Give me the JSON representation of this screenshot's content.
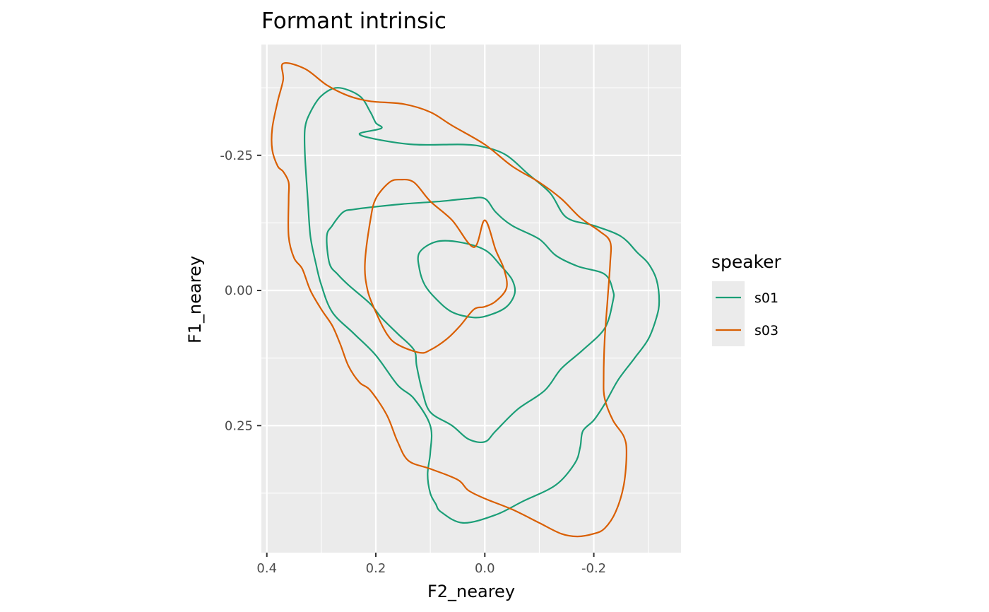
{
  "chart_data": {
    "type": "contour",
    "title": "Formant intrinsic",
    "xlabel": "F2_nearey",
    "ylabel": "F1_nearey",
    "x_reversed": true,
    "y_reversed": true,
    "xlim": [
      0.41,
      -0.36
    ],
    "ylim": [
      -0.455,
      0.485
    ],
    "x_ticks": [
      0.4,
      0.2,
      0.0,
      -0.2
    ],
    "x_tick_labels": [
      "0.4",
      "0.2",
      "0.0",
      "-0.2"
    ],
    "y_ticks": [
      -0.25,
      0.0,
      0.25
    ],
    "y_tick_labels": [
      "-0.25",
      "0.00",
      "0.25"
    ],
    "grid": true,
    "panel_background": "#ebebeb",
    "legend": {
      "title": "speaker",
      "position": "right",
      "entries": [
        {
          "label": "s01",
          "color": "#1b9e77"
        },
        {
          "label": "s03",
          "color": "#d95f02"
        }
      ]
    },
    "series": [
      {
        "name": "s01",
        "color": "#1b9e77",
        "contours": [
          {
            "level": "inner",
            "points": [
              [
                0.12,
                -0.07
              ],
              [
                0.09,
                -0.09
              ],
              [
                0.05,
                -0.09
              ],
              [
                0.0,
                -0.075
              ],
              [
                -0.03,
                -0.045
              ],
              [
                -0.05,
                -0.02
              ],
              [
                -0.055,
                0.005
              ],
              [
                -0.04,
                0.03
              ],
              [
                -0.01,
                0.045
              ],
              [
                0.02,
                0.05
              ],
              [
                0.06,
                0.04
              ],
              [
                0.09,
                0.015
              ],
              [
                0.11,
                -0.01
              ],
              [
                0.12,
                -0.04
              ],
              [
                0.12,
                -0.07
              ]
            ]
          },
          {
            "level": "middle",
            "points": [
              [
                0.24,
                -0.15
              ],
              [
                0.2,
                -0.155
              ],
              [
                0.15,
                -0.16
              ],
              [
                0.08,
                -0.165
              ],
              [
                0.03,
                -0.17
              ],
              [
                0.0,
                -0.17
              ],
              [
                -0.02,
                -0.145
              ],
              [
                -0.05,
                -0.12
              ],
              [
                -0.1,
                -0.095
              ],
              [
                -0.13,
                -0.065
              ],
              [
                -0.17,
                -0.045
              ],
              [
                -0.22,
                -0.03
              ],
              [
                -0.235,
                0.0
              ],
              [
                -0.235,
                0.02
              ],
              [
                -0.22,
                0.07
              ],
              [
                -0.18,
                0.11
              ],
              [
                -0.14,
                0.145
              ],
              [
                -0.11,
                0.185
              ],
              [
                -0.06,
                0.22
              ],
              [
                -0.02,
                0.26
              ],
              [
                0.0,
                0.28
              ],
              [
                0.03,
                0.275
              ],
              [
                0.06,
                0.25
              ],
              [
                0.1,
                0.225
              ],
              [
                0.115,
                0.185
              ],
              [
                0.125,
                0.14
              ],
              [
                0.13,
                0.11
              ],
              [
                0.16,
                0.08
              ],
              [
                0.19,
                0.05
              ],
              [
                0.21,
                0.025
              ],
              [
                0.25,
                -0.01
              ],
              [
                0.27,
                -0.03
              ],
              [
                0.285,
                -0.05
              ],
              [
                0.29,
                -0.1
              ],
              [
                0.28,
                -0.12
              ],
              [
                0.26,
                -0.145
              ],
              [
                0.24,
                -0.15
              ]
            ]
          },
          {
            "level": "outer",
            "points": [
              [
                0.23,
                -0.29
              ],
              [
                0.2,
                -0.28
              ],
              [
                0.13,
                -0.27
              ],
              [
                0.04,
                -0.27
              ],
              [
                0.0,
                -0.265
              ],
              [
                -0.04,
                -0.25
              ],
              [
                -0.08,
                -0.215
              ],
              [
                -0.12,
                -0.18
              ],
              [
                -0.15,
                -0.135
              ],
              [
                -0.2,
                -0.12
              ],
              [
                -0.25,
                -0.1
              ],
              [
                -0.28,
                -0.07
              ],
              [
                -0.3,
                -0.05
              ],
              [
                -0.315,
                -0.02
              ],
              [
                -0.32,
                0.02
              ],
              [
                -0.315,
                0.05
              ],
              [
                -0.3,
                0.09
              ],
              [
                -0.275,
                0.125
              ],
              [
                -0.245,
                0.165
              ],
              [
                -0.22,
                0.21
              ],
              [
                -0.2,
                0.24
              ],
              [
                -0.18,
                0.26
              ],
              [
                -0.175,
                0.29
              ],
              [
                -0.165,
                0.32
              ],
              [
                -0.13,
                0.36
              ],
              [
                -0.07,
                0.39
              ],
              [
                -0.02,
                0.415
              ],
              [
                0.04,
                0.43
              ],
              [
                0.08,
                0.41
              ],
              [
                0.09,
                0.395
              ],
              [
                0.1,
                0.375
              ],
              [
                0.105,
                0.34
              ],
              [
                0.1,
                0.3
              ],
              [
                0.1,
                0.25
              ],
              [
                0.13,
                0.2
              ],
              [
                0.16,
                0.175
              ],
              [
                0.2,
                0.12
              ],
              [
                0.24,
                0.08
              ],
              [
                0.28,
                0.04
              ],
              [
                0.3,
                -0.01
              ],
              [
                0.31,
                -0.05
              ],
              [
                0.32,
                -0.1
              ],
              [
                0.325,
                -0.17
              ],
              [
                0.33,
                -0.25
              ],
              [
                0.33,
                -0.3
              ],
              [
                0.32,
                -0.33
              ],
              [
                0.3,
                -0.36
              ],
              [
                0.27,
                -0.375
              ],
              [
                0.23,
                -0.36
              ],
              [
                0.21,
                -0.33
              ],
              [
                0.2,
                -0.31
              ],
              [
                0.19,
                -0.3
              ],
              [
                0.23,
                -0.29
              ]
            ]
          }
        ]
      },
      {
        "name": "s03",
        "color": "#d95f02",
        "contours": [
          {
            "level": "inner",
            "points": [
              [
                0.0,
                -0.13
              ],
              [
                0.02,
                -0.08
              ],
              [
                0.06,
                -0.13
              ],
              [
                0.1,
                -0.165
              ],
              [
                0.13,
                -0.2
              ],
              [
                0.155,
                -0.205
              ],
              [
                0.175,
                -0.2
              ],
              [
                0.2,
                -0.17
              ],
              [
                0.21,
                -0.13
              ],
              [
                0.22,
                -0.05
              ],
              [
                0.215,
                0.0
              ],
              [
                0.2,
                0.04
              ],
              [
                0.18,
                0.08
              ],
              [
                0.16,
                0.1
              ],
              [
                0.12,
                0.115
              ],
              [
                0.1,
                0.11
              ],
              [
                0.07,
                0.09
              ],
              [
                0.045,
                0.065
              ],
              [
                0.02,
                0.035
              ],
              [
                0.0,
                0.03
              ],
              [
                -0.02,
                0.02
              ],
              [
                -0.04,
                -0.005
              ],
              [
                -0.035,
                -0.04
              ],
              [
                -0.02,
                -0.075
              ],
              [
                0.0,
                -0.13
              ]
            ]
          },
          {
            "level": "outer",
            "points": [
              [
                0.37,
                -0.42
              ],
              [
                0.33,
                -0.41
              ],
              [
                0.29,
                -0.38
              ],
              [
                0.25,
                -0.36
              ],
              [
                0.21,
                -0.35
              ],
              [
                0.15,
                -0.345
              ],
              [
                0.1,
                -0.33
              ],
              [
                0.06,
                -0.305
              ],
              [
                0.0,
                -0.27
              ],
              [
                -0.05,
                -0.23
              ],
              [
                -0.1,
                -0.2
              ],
              [
                -0.14,
                -0.17
              ],
              [
                -0.175,
                -0.135
              ],
              [
                -0.21,
                -0.11
              ],
              [
                -0.23,
                -0.09
              ],
              [
                -0.23,
                -0.05
              ],
              [
                -0.225,
                0.02
              ],
              [
                -0.22,
                0.09
              ],
              [
                -0.218,
                0.16
              ],
              [
                -0.22,
                0.2
              ],
              [
                -0.235,
                0.24
              ],
              [
                -0.255,
                0.27
              ],
              [
                -0.26,
                0.3
              ],
              [
                -0.255,
                0.36
              ],
              [
                -0.24,
                0.41
              ],
              [
                -0.22,
                0.44
              ],
              [
                -0.2,
                0.45
              ],
              [
                -0.17,
                0.455
              ],
              [
                -0.14,
                0.45
              ],
              [
                -0.1,
                0.43
              ],
              [
                -0.05,
                0.405
              ],
              [
                0.0,
                0.385
              ],
              [
                0.03,
                0.37
              ],
              [
                0.05,
                0.35
              ],
              [
                0.1,
                0.33
              ],
              [
                0.14,
                0.315
              ],
              [
                0.16,
                0.28
              ],
              [
                0.18,
                0.23
              ],
              [
                0.21,
                0.185
              ],
              [
                0.23,
                0.17
              ],
              [
                0.25,
                0.14
              ],
              [
                0.265,
                0.1
              ],
              [
                0.28,
                0.065
              ],
              [
                0.3,
                0.035
              ],
              [
                0.32,
                0.0
              ],
              [
                0.335,
                -0.04
              ],
              [
                0.35,
                -0.06
              ],
              [
                0.36,
                -0.1
              ],
              [
                0.36,
                -0.17
              ],
              [
                0.36,
                -0.2
              ],
              [
                0.37,
                -0.22
              ],
              [
                0.38,
                -0.23
              ],
              [
                0.39,
                -0.26
              ],
              [
                0.39,
                -0.3
              ],
              [
                0.38,
                -0.35
              ],
              [
                0.37,
                -0.39
              ],
              [
                0.37,
                -0.42
              ]
            ]
          }
        ]
      }
    ]
  }
}
